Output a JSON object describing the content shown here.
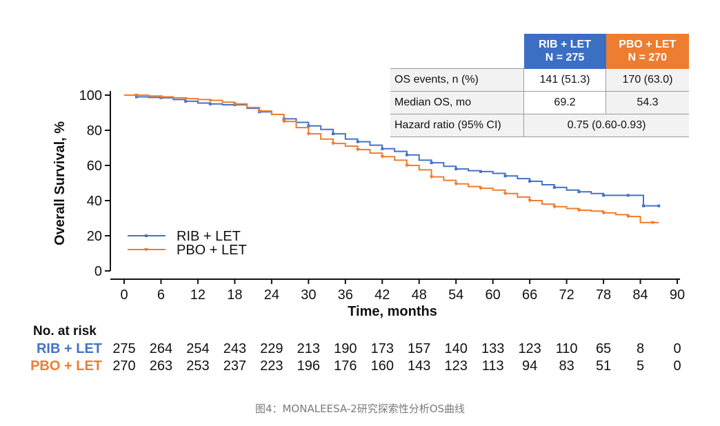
{
  "chart_data": {
    "type": "line",
    "subtype": "kaplan-meier",
    "ylabel": "Overall Survival, %",
    "xlabel": "Time, months",
    "xlim": [
      0,
      90
    ],
    "ylim": [
      0,
      100
    ],
    "xticks": [
      0,
      6,
      12,
      18,
      24,
      30,
      36,
      42,
      48,
      54,
      60,
      66,
      72,
      78,
      84,
      90
    ],
    "yticks": [
      0,
      20,
      40,
      60,
      80,
      100
    ],
    "legend_position": "bottom-left",
    "series": [
      {
        "name": "RIB + LET",
        "color": "#4472c4",
        "x": [
          0,
          2,
          4,
          6,
          8,
          10,
          12,
          14,
          16,
          18,
          20,
          22,
          24,
          26,
          28,
          30,
          32,
          34,
          36,
          38,
          40,
          42,
          44,
          46,
          48,
          50,
          52,
          54,
          56,
          58,
          60,
          62,
          64,
          66,
          68,
          70,
          72,
          74,
          76,
          78,
          80,
          82,
          84,
          84.5,
          86,
          87
        ],
        "values": [
          100,
          99,
          98.7,
          98.5,
          97.5,
          96.5,
          95.5,
          95,
          94.5,
          94.5,
          92.5,
          90.5,
          89,
          86.5,
          84.5,
          82.5,
          80.5,
          78,
          75,
          73.5,
          71.5,
          69.5,
          68,
          66,
          63,
          61.5,
          59.5,
          58,
          57,
          56.5,
          55.5,
          54,
          52.5,
          51,
          49,
          47.5,
          46,
          45,
          44,
          43,
          43,
          43,
          43,
          37,
          37,
          37
        ]
      },
      {
        "name": "PBO + LET",
        "color": "#ed7d31",
        "x": [
          0,
          2,
          4,
          6,
          8,
          10,
          12,
          14,
          16,
          18,
          20,
          22,
          24,
          26,
          28,
          30,
          32,
          34,
          36,
          38,
          40,
          42,
          44,
          46,
          48,
          50,
          52,
          54,
          56,
          58,
          60,
          62,
          64,
          66,
          68,
          70,
          72,
          74,
          76,
          78,
          80,
          82,
          84,
          86,
          87
        ],
        "values": [
          100,
          100,
          99.5,
          99,
          98.5,
          98,
          97.5,
          97,
          96,
          95,
          93,
          91,
          89,
          85,
          81.5,
          78,
          75,
          72.5,
          71,
          69,
          67,
          65,
          63,
          60,
          57.5,
          53.5,
          51.5,
          49.5,
          48,
          47,
          46,
          44,
          42,
          40,
          38,
          36.5,
          35.5,
          34.5,
          34,
          33,
          32,
          31,
          27.5,
          27.5,
          27.5
        ]
      }
    ],
    "risk_table": {
      "title": "No. at risk",
      "x": [
        0,
        6,
        12,
        18,
        24,
        30,
        36,
        42,
        48,
        54,
        60,
        66,
        72,
        78,
        84,
        90
      ],
      "rows": [
        {
          "name": "RIB + LET",
          "color": "#4472c4",
          "values": [
            275,
            264,
            254,
            243,
            229,
            213,
            190,
            173,
            157,
            140,
            133,
            123,
            110,
            65,
            8,
            0
          ]
        },
        {
          "name": "PBO + LET",
          "color": "#ed7d31",
          "values": [
            270,
            263,
            253,
            237,
            223,
            196,
            176,
            160,
            143,
            123,
            113,
            94,
            83,
            51,
            5,
            0
          ]
        }
      ]
    }
  },
  "os_table": {
    "header_rib": [
      "RIB + LET",
      "N = 275"
    ],
    "header_pbo": [
      "PBO + LET",
      "N = 270"
    ],
    "header_rib_color": "#3b6fc4",
    "header_pbo_color": "#ed7d31",
    "rows": [
      {
        "label": "OS events, n (%)",
        "rib": "141 (51.3)",
        "pbo": "170 (63.0)"
      },
      {
        "label": "Median OS, mo",
        "rib": "69.2",
        "pbo": "54.3"
      },
      {
        "label": "Hazard ratio (95% CI)",
        "combined": "0.75 (0.60-0.93)"
      }
    ]
  },
  "caption": "图4：MONALEESA-2研究探索性分析OS曲线"
}
